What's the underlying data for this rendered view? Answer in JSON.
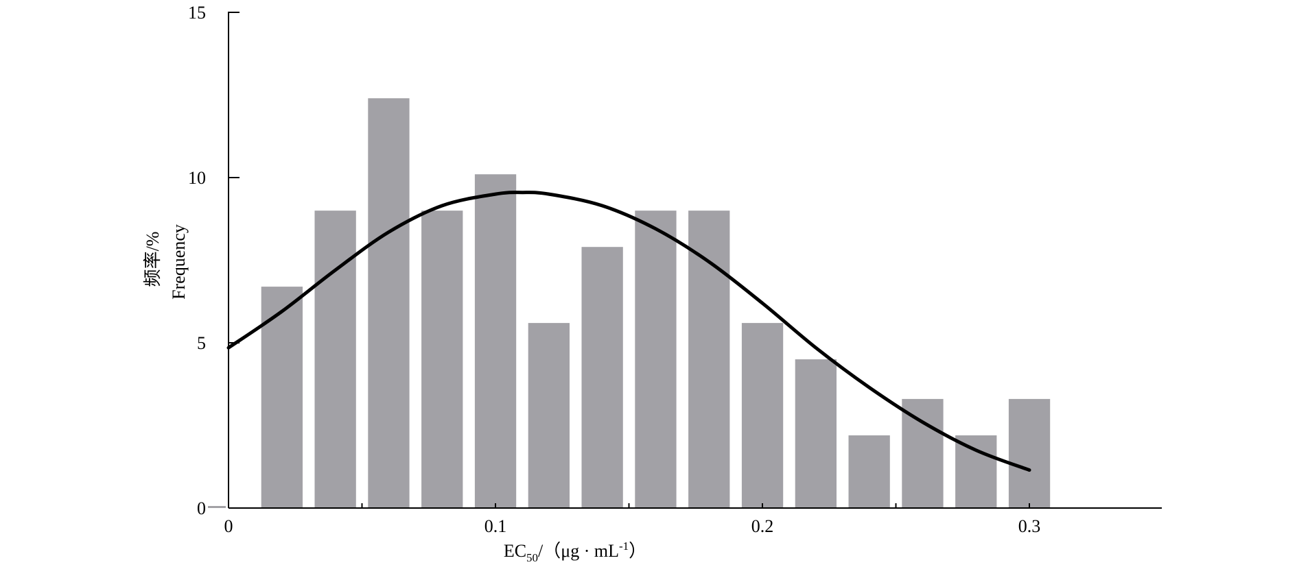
{
  "chart_data": {
    "type": "bar",
    "xlabel": {
      "prefix": "EC",
      "sub": "50",
      "unit": "/（μg · mL",
      "sup": "-1",
      "close": "）"
    },
    "ylabel": {
      "zh": "频率/%",
      "en": "Frequency"
    },
    "x_ticks": [
      "0",
      "0.1",
      "0.2",
      "0.3"
    ],
    "x_tick_values": [
      0,
      0.1,
      0.2,
      0.3
    ],
    "y_ticks": [
      "0",
      "5",
      "10",
      "15"
    ],
    "y_tick_values": [
      0,
      5,
      10,
      15
    ],
    "xlim": [
      0,
      0.35
    ],
    "ylim": [
      0,
      15
    ],
    "bar_width": 0.0155,
    "bar_color": "#a2a1a6",
    "curve_color": "#000000",
    "series": [
      {
        "type": "bar",
        "x": [
          0.0,
          0.02,
          0.04,
          0.06,
          0.08,
          0.1,
          0.12,
          0.14,
          0.16,
          0.18,
          0.2,
          0.22,
          0.24,
          0.26,
          0.28,
          0.3
        ],
        "values": [
          0.05,
          6.7,
          9.0,
          12.4,
          9.0,
          10.1,
          5.6,
          7.9,
          9.0,
          9.0,
          5.6,
          4.5,
          2.2,
          3.3,
          2.2,
          3.3
        ]
      },
      {
        "type": "line",
        "x": [
          0.0,
          0.02,
          0.04,
          0.06,
          0.08,
          0.1,
          0.11,
          0.12,
          0.14,
          0.16,
          0.18,
          0.2,
          0.22,
          0.24,
          0.26,
          0.28,
          0.3
        ],
        "values": [
          4.85,
          5.95,
          7.2,
          8.35,
          9.15,
          9.5,
          9.55,
          9.5,
          9.15,
          8.45,
          7.45,
          6.2,
          4.85,
          3.65,
          2.6,
          1.75,
          1.15
        ]
      }
    ]
  }
}
